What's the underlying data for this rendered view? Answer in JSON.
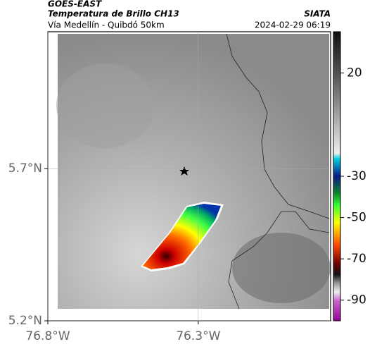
{
  "header": {
    "source": "GOES-EAST",
    "title": "Temperatura de Brillo CH13",
    "brand": "SIATA",
    "subtitle": "Vía Medellín - Quibdó 50km",
    "timestamp": "2024-02-29 06:19"
  },
  "map": {
    "xlim": [
      -76.8,
      -75.86
    ],
    "ylim": [
      5.2,
      6.15
    ],
    "xticks": [
      {
        "value": -76.8,
        "label": "76.8°W"
      },
      {
        "value": -76.3,
        "label": "76.3°W"
      }
    ],
    "yticks": [
      {
        "value": 5.2,
        "label": "5.2°N"
      },
      {
        "value": 5.7,
        "label": "5.7°N"
      }
    ],
    "grid": true
  },
  "colorbar": {
    "clim": [
      40,
      -100
    ],
    "ticks": [
      20,
      -30,
      -50,
      -70,
      -90
    ]
  }
}
